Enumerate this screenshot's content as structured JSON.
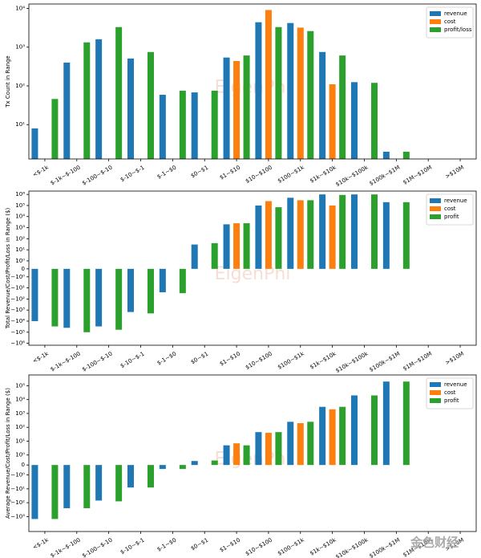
{
  "chart_data": [
    {
      "type": "bar",
      "scale": "log",
      "ylabel": "Tx Count in Range",
      "watermark": "EigenPhi",
      "legend": "upper right",
      "categories": [
        "<$-1k",
        "$-1k~$-100",
        "$-100~$-10",
        "$-10~$-1",
        "$-1~$0",
        "$0~$1",
        "$1~$10",
        "$10~$100",
        "$100~$1k",
        "$1k~$10k",
        "$10k~$100k",
        "$100k~$1M",
        "$1M~$10M",
        ">$10M"
      ],
      "series": [
        {
          "name": "revenue",
          "color": "#1f77b4",
          "values": [
            8,
            400,
            1600,
            510,
            59,
            68,
            540,
            4400,
            4200,
            750,
            125,
            2,
            null,
            null
          ]
        },
        {
          "name": "cost",
          "color": "#ff7f0e",
          "values": [
            null,
            null,
            null,
            null,
            null,
            null,
            440,
            9100,
            3200,
            110,
            null,
            null,
            null,
            null
          ]
        },
        {
          "name": "profit/loss",
          "color": "#2ca02c",
          "values": [
            46,
            1330,
            3300,
            750,
            75,
            75,
            610,
            3300,
            2600,
            610,
            120,
            2,
            null,
            null
          ]
        }
      ],
      "ylim": [
        1.3,
        13000
      ],
      "yticks": [
        {
          "value": 10,
          "label": "10¹"
        },
        {
          "value": 100,
          "label": "10²"
        },
        {
          "value": 1000,
          "label": "10³"
        },
        {
          "value": 10000,
          "label": "10⁴"
        }
      ]
    },
    {
      "type": "bar",
      "scale": "symlog",
      "linthresh": 1,
      "ylabel": "Total Revenue/Cost/Profit/Loss in Range ($)",
      "watermark": "EigenPhi",
      "legend": "upper right",
      "categories": [
        "<$-1k",
        "$-1k~$-100",
        "$-100~$-10",
        "$-10~$-1",
        "$-1~$0",
        "$0~$1",
        "$1~$10",
        "$10~$100",
        "$100~$1k",
        "$1k~$10k",
        "$10k~$100k",
        "$100k~$1M",
        "$1M~$10M",
        ">$10M"
      ],
      "series": [
        {
          "name": "revenue",
          "color": "#1f77b4",
          "values": [
            -10000,
            -40000,
            -30000,
            -1500,
            -25,
            30,
            2000,
            100000,
            500000,
            1000000,
            1000000,
            200000,
            null,
            null
          ]
        },
        {
          "name": "cost",
          "color": "#ff7f0e",
          "values": [
            null,
            null,
            null,
            null,
            null,
            null,
            2500,
            250000,
            300000,
            100000,
            null,
            null,
            null,
            null
          ]
        },
        {
          "name": "profit",
          "color": "#2ca02c",
          "values": [
            -30000,
            -100000,
            -60000,
            -2000,
            -30,
            40,
            2500,
            70000,
            300000,
            900000,
            1000000,
            200000,
            null,
            null
          ]
        }
      ],
      "ylim": [
        -1500000,
        2000000
      ],
      "yticks": [
        {
          "value": -1000000,
          "label": "−10⁶"
        },
        {
          "value": -100000,
          "label": "−10⁵"
        },
        {
          "value": -10000,
          "label": "−10⁴"
        },
        {
          "value": -1000,
          "label": "−10³"
        },
        {
          "value": -100,
          "label": "−10²"
        },
        {
          "value": -10,
          "label": "−10¹"
        },
        {
          "value": -1,
          "label": "−10⁰"
        },
        0,
        {
          "value": 1,
          "label": "10⁰"
        },
        {
          "value": 10,
          "label": "10¹"
        },
        {
          "value": 100,
          "label": "10²"
        },
        {
          "value": 1000,
          "label": "10³"
        },
        {
          "value": 10000,
          "label": "10⁴"
        },
        {
          "value": 100000,
          "label": "10⁵"
        },
        {
          "value": 1000000,
          "label": "10⁶"
        }
      ]
    },
    {
      "type": "bar",
      "scale": "symlog",
      "linthresh": 1,
      "ylabel": "Average Revenue/Cost/Profit/Loss in Range ($)",
      "watermark": "EigenPhi",
      "legend": "upper right",
      "categories": [
        "<$-1k",
        "$-1k~$-100",
        "$-100~$-10",
        "$-10~$-1",
        "$-1~$0",
        "$0~$1",
        "$1~$10",
        "$10~$100",
        "$100~$1k",
        "$1k~$10k",
        "$10k~$100k",
        "$100k~$1M",
        "$1M~$10M",
        ">$10M"
      ],
      "series": [
        {
          "name": "revenue",
          "color": "#1f77b4",
          "values": [
            -1500,
            -250,
            -70,
            -8,
            -0.4,
            0.4,
            5,
            45,
            250,
            3000,
            20000,
            200000,
            null,
            null
          ]
        },
        {
          "name": "cost",
          "color": "#ff7f0e",
          "values": [
            null,
            null,
            null,
            null,
            null,
            null,
            7,
            40,
            200,
            2000,
            null,
            null,
            null,
            null
          ]
        },
        {
          "name": "profit",
          "color": "#2ca02c",
          "values": [
            -1500,
            -250,
            -80,
            -8,
            -0.4,
            0.45,
            5,
            45,
            250,
            3000,
            20000,
            200000,
            null,
            null
          ]
        }
      ],
      "ylim": [
        -12000,
        600000
      ],
      "yticks": [
        {
          "value": -1000,
          "label": "−10³"
        },
        {
          "value": -100,
          "label": "−10²"
        },
        {
          "value": -10,
          "label": "−10¹"
        },
        {
          "value": -1,
          "label": "−10⁰"
        },
        0,
        {
          "value": 1,
          "label": "10⁰"
        },
        {
          "value": 10,
          "label": "10¹"
        },
        {
          "value": 100,
          "label": "10²"
        },
        {
          "value": 1000,
          "label": "10³"
        },
        {
          "value": 10000,
          "label": "10⁴"
        },
        {
          "value": 100000,
          "label": "10⁵"
        }
      ]
    }
  ],
  "logo": "金色财经"
}
